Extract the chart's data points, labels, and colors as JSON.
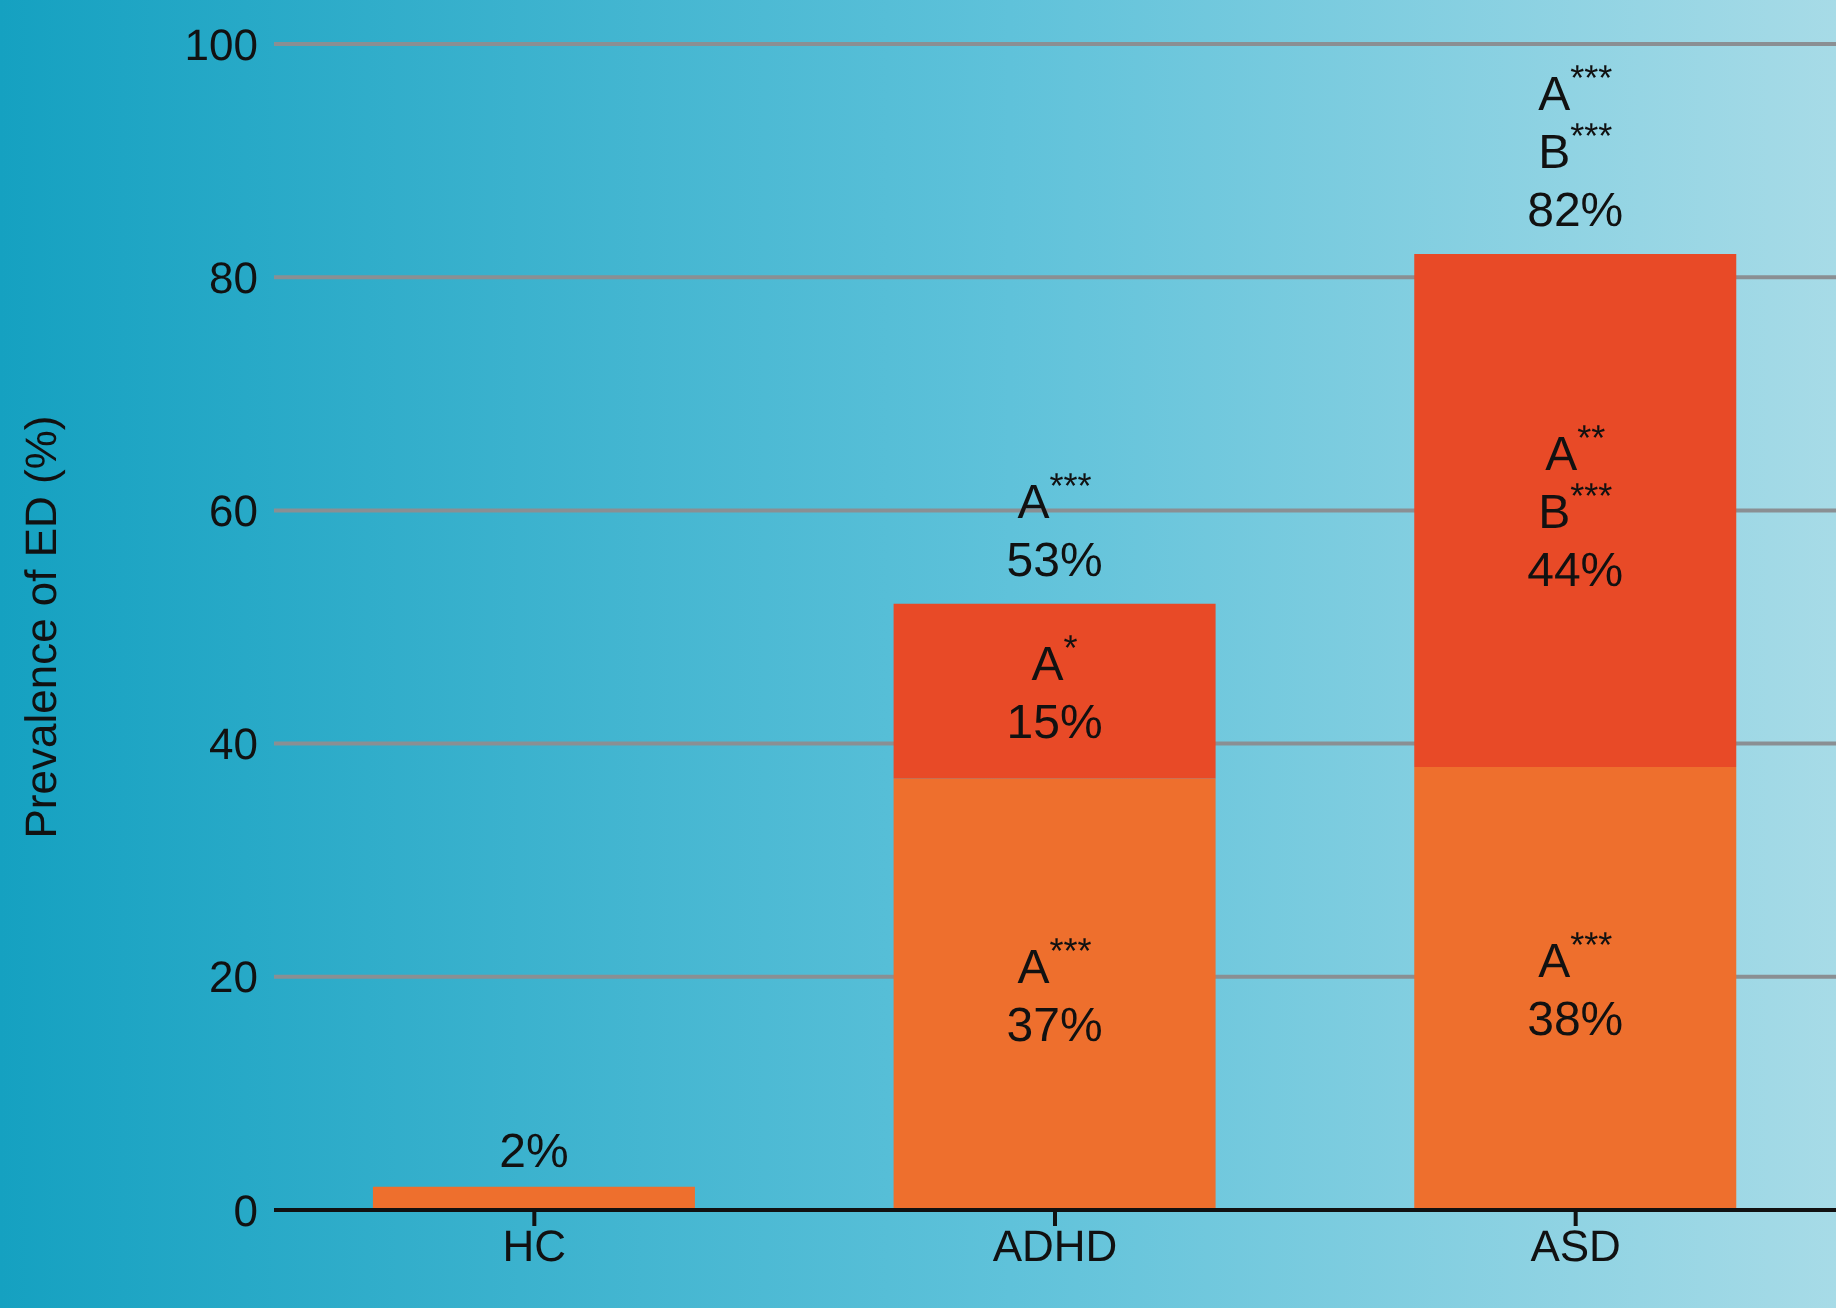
{
  "chart_data": {
    "type": "bar",
    "ylabel": "Prevalence of ED (%)",
    "categories": [
      "HC",
      "ADHD",
      "ASD"
    ],
    "stacked": true,
    "series": [
      {
        "color": "#ee6f2d",
        "values": [
          2,
          37,
          38
        ],
        "value_labels": [
          "2%",
          "A$^{***}$\n37%",
          "A$^{***}$\n38%"
        ]
      },
      {
        "color": "#e84a27",
        "values": [
          null,
          15,
          44
        ],
        "value_labels": [
          null,
          "A$^{*}$\n15%",
          "A$^{**}$\nB$^{***}$\n44%"
        ]
      }
    ],
    "totals": [
      null,
      "A$^{***}$\n53%",
      "A$^{***}$\nB$^{***}$\n82%"
    ],
    "ylim": [
      0,
      100
    ],
    "yticks": [
      0,
      20,
      40,
      60,
      80,
      100
    ],
    "grid": "y",
    "legend": false
  }
}
